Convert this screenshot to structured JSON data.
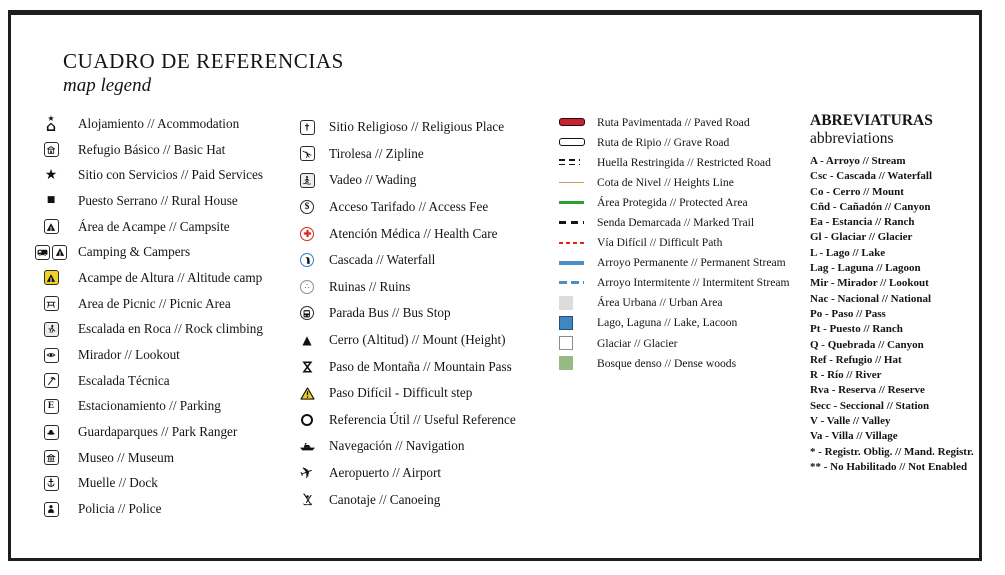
{
  "title": "CUADRO DE REFERENCIAS",
  "subtitle": "map legend",
  "symbols_col1": [
    {
      "icon": "accommodation-icon",
      "label": "Alojamiento // Acommodation"
    },
    {
      "icon": "basic-hut-icon",
      "label": "Refugio Básico // Basic Hat"
    },
    {
      "icon": "paid-services-icon",
      "label": "Sitio con Servicios // Paid Services"
    },
    {
      "icon": "rural-house-icon",
      "label": "Puesto Serrano // Rural House"
    },
    {
      "icon": "campsite-icon",
      "label": "Área de Acampe // Campsite"
    },
    {
      "icon": "camping-campers-icon",
      "label": "Camping & Campers"
    },
    {
      "icon": "altitude-camp-icon",
      "label": "Acampe de Altura // Altitude camp"
    },
    {
      "icon": "picnic-area-icon",
      "label": "Area de Picnic // Picnic Area"
    },
    {
      "icon": "rock-climbing-icon",
      "label": "Escalada en Roca // Rock climbing"
    },
    {
      "icon": "lookout-icon",
      "label": "Mirador // Lookout"
    },
    {
      "icon": "technical-climbing-icon",
      "label": "Escalada Técnica"
    },
    {
      "icon": "parking-icon",
      "label": "Estacionamiento // Parking"
    },
    {
      "icon": "park-ranger-icon",
      "label": "Guardaparques // Park Ranger"
    },
    {
      "icon": "museum-icon",
      "label": "Museo // Museum"
    },
    {
      "icon": "dock-icon",
      "label": "Muelle // Dock"
    },
    {
      "icon": "police-icon",
      "label": "Policia // Police"
    }
  ],
  "symbols_col2": [
    {
      "icon": "religious-place-icon",
      "label": "Sitio Religioso // Religious Place"
    },
    {
      "icon": "zipline-icon",
      "label": "Tirolesa // Zipline"
    },
    {
      "icon": "wading-icon",
      "label": "Vadeo // Wading"
    },
    {
      "icon": "access-fee-icon",
      "label": "Acceso Tarifado // Access Fee"
    },
    {
      "icon": "health-care-icon",
      "label": "Atención Médica // Health Care"
    },
    {
      "icon": "waterfall-icon",
      "label": "Cascada // Waterfall"
    },
    {
      "icon": "ruins-icon",
      "label": "Ruinas // Ruins"
    },
    {
      "icon": "bus-stop-icon",
      "label": "Parada Bus // Bus Stop"
    },
    {
      "icon": "mount-icon",
      "label": "Cerro (Altitud) // Mount (Height)"
    },
    {
      "icon": "mountain-pass-icon",
      "label": "Paso de Montaña // Mountain Pass"
    },
    {
      "icon": "difficult-step-icon",
      "label": "Paso Difícil - Difficult step"
    },
    {
      "icon": "useful-reference-icon",
      "label": "Referencia Útil // Useful Reference"
    },
    {
      "icon": "navigation-icon",
      "label": "Navegación // Navigation"
    },
    {
      "icon": "airport-icon",
      "label": "Aeropuerto // Airport"
    },
    {
      "icon": "canoeing-icon",
      "label": "Canotaje // Canoeing"
    }
  ],
  "lines": [
    {
      "symbol": "paved-road",
      "label": "Ruta Pavimentada // Paved Road",
      "color": "#cf2030"
    },
    {
      "symbol": "gravel-road",
      "label": "Ruta de Ripio // Grave Road",
      "color": "#ffffff"
    },
    {
      "symbol": "restricted-trail",
      "label": "Huella Restringida // Restricted Road",
      "color": "#161616"
    },
    {
      "symbol": "heights-line",
      "label": "Cota de Nivel // Heights Line",
      "color": "#c49a62"
    },
    {
      "symbol": "protected-area",
      "label": "Área Protegida // Protected Area",
      "color": "#2da12e"
    },
    {
      "symbol": "marked-trail",
      "label": "Senda Demarcada // Marked Trail",
      "color": "#161616"
    },
    {
      "symbol": "difficult-path",
      "label": "Vía Difícil // Difficult Path",
      "color": "#e02121"
    },
    {
      "symbol": "permanent-stream",
      "label": "Arroyo Permanente // Permanent Stream",
      "color": "#4b8fc9"
    },
    {
      "symbol": "intermittent-stream",
      "label": "Arroyo Intermitente // Intermitent Stream",
      "color": "#4b8fc9"
    }
  ],
  "areas": [
    {
      "symbol": "urban-area",
      "label": "Área Urbana // Urban Area",
      "fill": "#dcdcdc",
      "border": "#dcdcdc"
    },
    {
      "symbol": "lake",
      "label": "Lago, Laguna // Lake, Lacoon",
      "fill": "#3f86c2",
      "border": "#24517c"
    },
    {
      "symbol": "glacier",
      "label": "Glaciar // Glacier",
      "fill": "#ffffff",
      "border": "#8c8c8c"
    },
    {
      "symbol": "dense-woods",
      "label": "Bosque denso // Dense woods",
      "fill": "#96ba84",
      "border": "#96ba84"
    }
  ],
  "abbreviations": {
    "title": "ABREVIATURAS",
    "subtitle": "abbreviations",
    "entries": [
      "A - Arroyo // Stream",
      "Csc - Cascada // Waterfall",
      "Co - Cerro // Mount",
      "Cñd - Cañadón // Canyon",
      "Ea - Estancia // Ranch",
      "Gl - Glaciar // Glacier",
      "L - Lago // Lake",
      "Lag - Laguna // Lagoon",
      "Mir - Mirador // Lookout",
      "Nac - Nacional // National",
      "Po - Paso // Pass",
      "Pt - Puesto // Ranch",
      "Q - Quebrada // Canyon",
      "Ref - Refugio // Hat",
      "R - Río // River",
      "Rva - Reserva // Reserve",
      "Secc - Seccional // Station",
      "V - Valle // Valley",
      "Va - Villa // Village",
      "* - Registr. Oblig. // Mand. Registr.",
      "** - No Habilitado // Not Enabled"
    ]
  },
  "accent_colors": {
    "warning_yellow": "#f2d125",
    "medical_red": "#d6281e",
    "waterfall_blue": "#2e7cd0"
  }
}
